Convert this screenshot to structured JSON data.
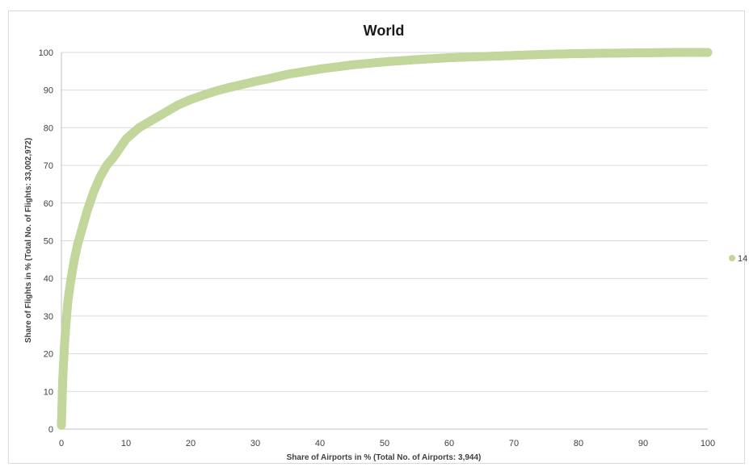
{
  "chart_data": {
    "type": "scatter",
    "title": "World",
    "xlabel": "Share of Airports in % (Total No. of Airports: 3,944)",
    "ylabel": "Share of Flights in % (Total No. of Flights: 33,002,972)",
    "xlim": [
      0,
      100
    ],
    "ylim": [
      0,
      100
    ],
    "xticks": [
      0,
      10,
      20,
      30,
      40,
      50,
      60,
      70,
      80,
      90,
      100
    ],
    "yticks": [
      0,
      10,
      20,
      30,
      40,
      50,
      60,
      70,
      80,
      90,
      100
    ],
    "grid": "horizontal",
    "legend": "right",
    "colors": {
      "series": "#c3d69b"
    },
    "series": [
      {
        "name": "14",
        "x": [
          0,
          0.2,
          0.5,
          0.8,
          1,
          1.5,
          2,
          2.5,
          3,
          4,
          5,
          6,
          7,
          8,
          10,
          12,
          14,
          16,
          18,
          20,
          22,
          24,
          26,
          28,
          30,
          32,
          35,
          40,
          45,
          50,
          55,
          60,
          65,
          70,
          75,
          80,
          85,
          90,
          95,
          100
        ],
        "y": [
          1,
          13,
          23,
          30,
          34,
          40,
          45,
          49,
          52,
          58,
          63,
          67,
          70,
          72,
          77,
          80,
          82,
          84,
          86,
          87.5,
          88.7,
          89.8,
          90.7,
          91.5,
          92.3,
          93,
          94.2,
          95.6,
          96.7,
          97.5,
          98.1,
          98.6,
          98.9,
          99.2,
          99.5,
          99.7,
          99.8,
          99.9,
          100,
          100
        ]
      }
    ]
  }
}
